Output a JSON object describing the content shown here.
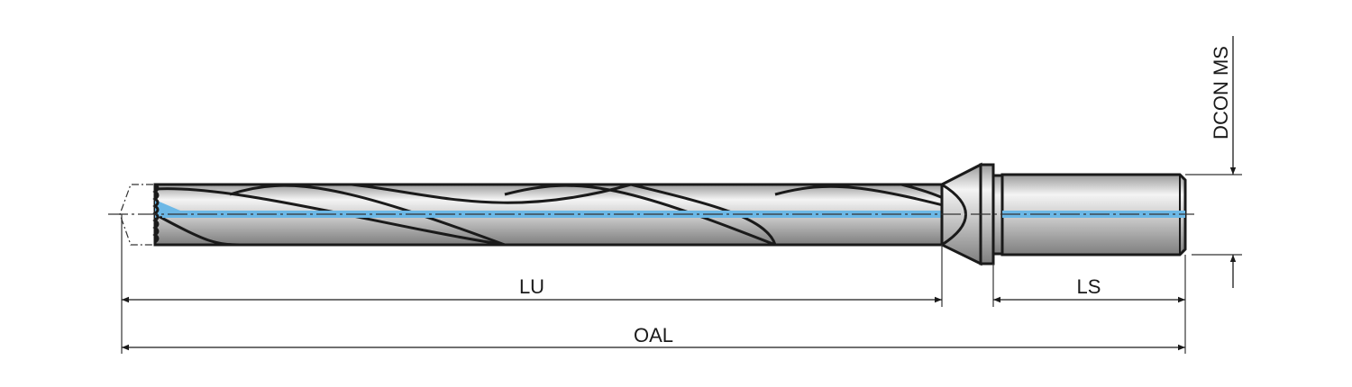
{
  "labels": {
    "lu": "LU",
    "ls": "LS",
    "oal": "OAL",
    "dcon": "DCON MS"
  },
  "colors": {
    "coolant": "#6cb8e6",
    "outline": "#1a1a1a",
    "steel_light": "#f2f2f2",
    "steel_dark": "#8a8a8a"
  }
}
